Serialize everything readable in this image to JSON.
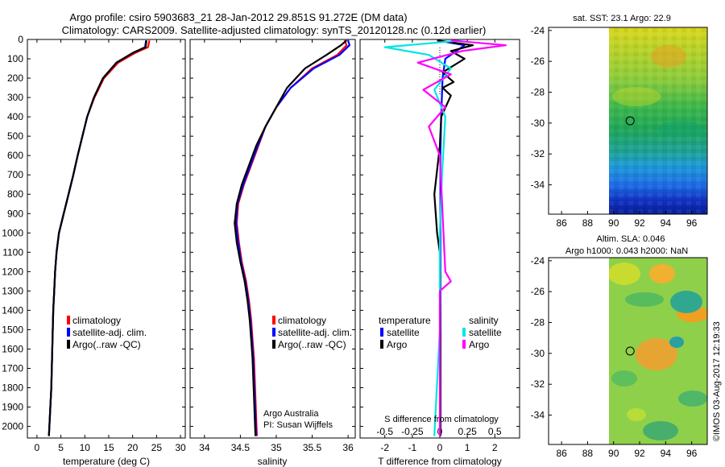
{
  "header": {
    "line1": "Argo profile: csiro 5903683_21 28-Jan-2012 29.851S 91.272E (DM data)",
    "line2": "Climatology: CARS2009. Satellite-adjusted climatology: synTS_20120128.nc (0.12d earlier)"
  },
  "colors": {
    "climatology": "#ff0000",
    "satellite": "#0000ff",
    "argo": "#000000",
    "sat_salinity": "#00e5e5",
    "argo_salinity": "#ff00ff"
  },
  "chart_data": [
    {
      "name": "temperature-profile",
      "type": "line",
      "xlabel": "temperature (deg C)",
      "xlim": [
        -2,
        31
      ],
      "ylim": [
        2060,
        0
      ],
      "xticks": [
        0,
        5,
        10,
        15,
        20,
        25,
        30
      ],
      "yticks": [
        0,
        100,
        200,
        300,
        400,
        500,
        600,
        700,
        800,
        900,
        1000,
        1100,
        1200,
        1300,
        1400,
        1500,
        1600,
        1700,
        1800,
        1900,
        2000
      ],
      "legend": [
        "climatology",
        "satellite-adj. clim.",
        "Argo(..raw -QC)"
      ],
      "series": [
        {
          "name": "climatology",
          "color": "#ff0000",
          "points": [
            [
              23.5,
              5
            ],
            [
              23.2,
              40
            ],
            [
              20.5,
              70
            ],
            [
              17,
              120
            ],
            [
              14,
              200
            ],
            [
              12,
              300
            ],
            [
              10.5,
              400
            ],
            [
              9.5,
              500
            ],
            [
              8.5,
              600
            ],
            [
              7.6,
              700
            ],
            [
              6.6,
              800
            ],
            [
              5.6,
              900
            ],
            [
              4.6,
              1000
            ],
            [
              4.1,
              1100
            ],
            [
              3.8,
              1200
            ],
            [
              3.6,
              1300
            ],
            [
              3.4,
              1400
            ],
            [
              3.3,
              1500
            ],
            [
              3.2,
              1600
            ],
            [
              3.1,
              1700
            ],
            [
              3.0,
              1800
            ],
            [
              2.8,
              1900
            ],
            [
              2.6,
              2000
            ],
            [
              2.5,
              2050
            ]
          ]
        },
        {
          "name": "satellite-adj. clim.",
          "color": "#0000ff",
          "points": [
            [
              22.8,
              5
            ],
            [
              22.6,
              40
            ],
            [
              20,
              70
            ],
            [
              16.6,
              120
            ],
            [
              13.8,
              200
            ],
            [
              11.9,
              300
            ],
            [
              10.5,
              400
            ],
            [
              9.5,
              500
            ],
            [
              8.5,
              600
            ],
            [
              7.6,
              700
            ],
            [
              6.6,
              800
            ],
            [
              5.6,
              900
            ],
            [
              4.6,
              1000
            ],
            [
              4.1,
              1100
            ],
            [
              3.8,
              1200
            ],
            [
              3.6,
              1300
            ],
            [
              3.4,
              1400
            ],
            [
              3.3,
              1500
            ],
            [
              3.2,
              1600
            ],
            [
              3.1,
              1700
            ],
            [
              3.0,
              1800
            ],
            [
              2.8,
              1900
            ],
            [
              2.6,
              2000
            ],
            [
              2.5,
              2050
            ]
          ]
        },
        {
          "name": "Argo(..raw -QC)",
          "color": "#000000",
          "points": [
            [
              22.9,
              5
            ],
            [
              22.7,
              40
            ],
            [
              20,
              70
            ],
            [
              16.6,
              120
            ],
            [
              13.8,
              200
            ],
            [
              11.9,
              300
            ],
            [
              10.5,
              400
            ],
            [
              9.5,
              500
            ],
            [
              8.5,
              600
            ],
            [
              7.6,
              700
            ],
            [
              6.6,
              800
            ],
            [
              5.6,
              900
            ],
            [
              4.6,
              1000
            ],
            [
              4.1,
              1100
            ],
            [
              3.8,
              1200
            ],
            [
              3.6,
              1300
            ],
            [
              3.4,
              1400
            ],
            [
              3.3,
              1500
            ],
            [
              3.2,
              1600
            ],
            [
              3.1,
              1700
            ],
            [
              3.0,
              1800
            ],
            [
              2.8,
              1900
            ],
            [
              2.6,
              2000
            ],
            [
              2.5,
              2050
            ]
          ]
        }
      ]
    },
    {
      "name": "salinity-profile",
      "type": "line",
      "xlabel": "salinity",
      "xlim": [
        33.8,
        36.1
      ],
      "ylim": [
        2060,
        0
      ],
      "xticks": [
        34,
        34.5,
        35,
        35.5,
        36
      ],
      "xticklabels": [
        "34",
        "34.5",
        "35",
        "35.5",
        "36"
      ],
      "legend": [
        "climatology",
        "satellite-adj. clim.",
        "Argo(..raw -QC)"
      ],
      "note": [
        "Argo Australia",
        "PI: Susan Wijffels"
      ],
      "series": [
        {
          "name": "climatology",
          "color": "#ff0000",
          "points": [
            [
              35.95,
              5
            ],
            [
              35.98,
              30
            ],
            [
              35.85,
              80
            ],
            [
              35.5,
              150
            ],
            [
              35.2,
              250
            ],
            [
              35.0,
              350
            ],
            [
              34.85,
              450
            ],
            [
              34.75,
              550
            ],
            [
              34.65,
              650
            ],
            [
              34.55,
              750
            ],
            [
              34.47,
              850
            ],
            [
              34.45,
              950
            ],
            [
              34.48,
              1050
            ],
            [
              34.52,
              1150
            ],
            [
              34.58,
              1250
            ],
            [
              34.62,
              1350
            ],
            [
              34.65,
              1450
            ],
            [
              34.67,
              1550
            ],
            [
              34.69,
              1650
            ],
            [
              34.7,
              1750
            ],
            [
              34.71,
              1850
            ],
            [
              34.72,
              1950
            ],
            [
              34.73,
              2050
            ]
          ]
        },
        {
          "name": "satellite-adj. clim.",
          "color": "#0000ff",
          "points": [
            [
              36.0,
              5
            ],
            [
              36.02,
              30
            ],
            [
              35.88,
              80
            ],
            [
              35.52,
              150
            ],
            [
              35.2,
              250
            ],
            [
              35.0,
              350
            ],
            [
              34.85,
              450
            ],
            [
              34.74,
              550
            ],
            [
              34.64,
              650
            ],
            [
              34.54,
              750
            ],
            [
              34.46,
              850
            ],
            [
              34.44,
              950
            ],
            [
              34.47,
              1050
            ],
            [
              34.51,
              1150
            ],
            [
              34.57,
              1250
            ],
            [
              34.61,
              1350
            ],
            [
              34.64,
              1450
            ],
            [
              34.66,
              1550
            ],
            [
              34.68,
              1650
            ],
            [
              34.69,
              1750
            ],
            [
              34.7,
              1850
            ],
            [
              34.71,
              1950
            ],
            [
              34.72,
              2050
            ]
          ]
        },
        {
          "name": "Argo(..raw -QC)",
          "color": "#000000",
          "points": [
            [
              35.98,
              5
            ],
            [
              35.9,
              30
            ],
            [
              35.7,
              80
            ],
            [
              35.4,
              150
            ],
            [
              35.15,
              250
            ],
            [
              35.0,
              350
            ],
            [
              34.85,
              450
            ],
            [
              34.72,
              550
            ],
            [
              34.62,
              650
            ],
            [
              34.52,
              750
            ],
            [
              34.45,
              850
            ],
            [
              34.42,
              950
            ],
            [
              34.45,
              1050
            ],
            [
              34.5,
              1150
            ],
            [
              34.56,
              1250
            ],
            [
              34.6,
              1350
            ],
            [
              34.63,
              1450
            ],
            [
              34.65,
              1550
            ],
            [
              34.67,
              1650
            ],
            [
              34.68,
              1750
            ],
            [
              34.69,
              1850
            ],
            [
              34.7,
              1950
            ],
            [
              34.71,
              2050
            ]
          ]
        }
      ]
    },
    {
      "name": "difference-profile",
      "type": "line",
      "xlabel": "T difference from climatology",
      "xlabel2": "S difference from climatology",
      "xlim": [
        -2.9,
        2.9
      ],
      "ylim": [
        2060,
        0
      ],
      "xticks": [
        -2,
        -1,
        0,
        1,
        2
      ],
      "xticklabels": [
        "-2",
        "-1",
        "0",
        "1",
        "2"
      ],
      "xticks2": [
        -0.5,
        -0.25,
        0,
        0.25,
        0.5
      ],
      "xticklabels2": [
        "-0.5",
        "-0.25",
        "0",
        "0.25",
        "0.5"
      ],
      "legend_titles": [
        "temperature",
        "salinity"
      ],
      "legend": [
        "satellite",
        "Argo",
        "satellite",
        "Argo"
      ],
      "series": [
        {
          "name": "T satellite",
          "color": "#0000ff",
          "points": [
            [
              -0.1,
              5
            ],
            [
              0.9,
              30
            ],
            [
              0.6,
              60
            ],
            [
              0.2,
              100
            ],
            [
              0.1,
              200
            ],
            [
              0.05,
              400
            ],
            [
              0.02,
              600
            ],
            [
              0.02,
              800
            ],
            [
              0.02,
              1000
            ],
            [
              0.02,
              1500
            ],
            [
              0.02,
              2050
            ]
          ]
        },
        {
          "name": "T Argo",
          "color": "#000000",
          "points": [
            [
              -0.1,
              5
            ],
            [
              1.2,
              30
            ],
            [
              0.4,
              60
            ],
            [
              0.9,
              100
            ],
            [
              0.1,
              170
            ],
            [
              0.5,
              220
            ],
            [
              0.1,
              250
            ],
            [
              0.4,
              290
            ],
            [
              0.05,
              400
            ],
            [
              0.0,
              550
            ],
            [
              -0.2,
              800
            ],
            [
              -0.15,
              900
            ],
            [
              -0.1,
              1000
            ],
            [
              0.0,
              1100
            ],
            [
              0.02,
              1500
            ],
            [
              0.02,
              2050
            ]
          ]
        },
        {
          "name": "S satellite",
          "color": "#00e5e5",
          "points": [
            [
              0.2,
              5
            ],
            [
              -0.5,
              40
            ],
            [
              -0.1,
              80
            ],
            [
              0.1,
              150
            ],
            [
              -0.05,
              260
            ],
            [
              0.05,
              400
            ],
            [
              0.02,
              700
            ],
            [
              0.0,
              1000
            ],
            [
              0.0,
              1500
            ],
            [
              -0.05,
              2050
            ]
          ]
        },
        {
          "name": "S Argo",
          "color": "#ff00ff",
          "points": [
            [
              0.1,
              5
            ],
            [
              0.6,
              30
            ],
            [
              0.2,
              60
            ],
            [
              -0.2,
              120
            ],
            [
              0.1,
              180
            ],
            [
              -0.15,
              260
            ],
            [
              0.05,
              350
            ],
            [
              -0.1,
              450
            ],
            [
              0.0,
              600
            ],
            [
              0.05,
              1200
            ],
            [
              0.1,
              1250
            ],
            [
              0.0,
              1300
            ],
            [
              0.0,
              1500
            ],
            [
              0.0,
              2050
            ]
          ]
        }
      ]
    },
    {
      "name": "sst-map",
      "type": "heatmap",
      "title": "sat. SST: 23.1  Argo: 22.9",
      "xlim": [
        85,
        97.2
      ],
      "ylim": [
        -35.9,
        -23.8
      ],
      "xticks": [
        86,
        88,
        90,
        92,
        94,
        96
      ],
      "yticks": [
        -24,
        -26,
        -28,
        -30,
        -32,
        -34
      ],
      "data_extent_lon": [
        89.9,
        97.2
      ],
      "marker": {
        "lon": 91.27,
        "lat": -29.85
      }
    },
    {
      "name": "sla-map",
      "type": "heatmap",
      "title": "Altim. SLA: 0.046",
      "subtitle": "Argo h1000: 0.043 h2000: NaN",
      "xlim": [
        85,
        97.2
      ],
      "ylim": [
        -35.9,
        -23.8
      ],
      "xticks": [
        86,
        88,
        90,
        92,
        94,
        96
      ],
      "yticks": [
        -24,
        -26,
        -28,
        -30,
        -32,
        -34
      ],
      "data_extent_lon": [
        89.9,
        97.2
      ],
      "marker": {
        "lon": 91.27,
        "lat": -29.85
      }
    }
  ],
  "footer_stamp": "©IMOS 03-Aug-2017 12:19:33"
}
